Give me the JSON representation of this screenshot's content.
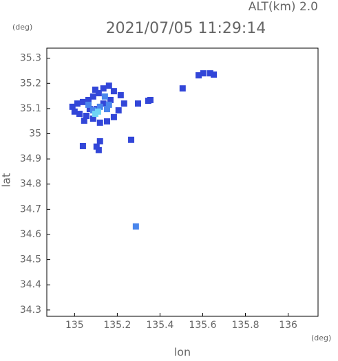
{
  "chart_data": {
    "type": "scatter",
    "header": "ALT(km) 2.0",
    "title": "2021/07/05 11:29:14",
    "y_unit": "(deg)",
    "x_unit": "(deg)",
    "ylabel": "lat",
    "xlabel": "lon",
    "xlim": [
      134.87,
      136.14
    ],
    "ylim": [
      34.275,
      35.34
    ],
    "xticks": [
      135.0,
      135.2,
      135.4,
      135.6,
      135.8,
      136.0
    ],
    "yticks": [
      34.3,
      34.4,
      34.5,
      34.6,
      34.7,
      34.8,
      34.9,
      35.0,
      35.1,
      35.2,
      35.3
    ],
    "series": [
      {
        "color": "#3246d8",
        "x": [
          134.99,
          135.013,
          135.039,
          135.065,
          135.087,
          135.113,
          135.135,
          135.161,
          135.184,
          135.216,
          135.232,
          135.206,
          135.184,
          135.152,
          135.119,
          135.087,
          135.055,
          135.023,
          135.0,
          135.103,
          135.135,
          135.168,
          135.071,
          135.097,
          135.045,
          135.039,
          135.103,
          135.119,
          135.113,
          135.581,
          135.603,
          135.635,
          135.652,
          135.506,
          135.345,
          135.355,
          135.297,
          135.265
        ],
        "y": [
          35.107,
          35.12,
          35.126,
          35.134,
          35.148,
          35.161,
          35.18,
          35.191,
          35.169,
          35.153,
          35.12,
          35.093,
          35.066,
          35.049,
          35.044,
          35.06,
          35.071,
          35.079,
          35.088,
          35.098,
          35.12,
          35.134,
          35.098,
          35.175,
          35.052,
          34.951,
          34.949,
          34.97,
          34.935,
          35.232,
          35.24,
          35.24,
          35.235,
          35.18,
          35.131,
          35.134,
          35.12,
          34.976
        ]
      },
      {
        "color": "#4a86ec",
        "x": [
          135.087,
          135.119,
          135.065,
          135.161,
          135.142,
          135.152,
          135.287
        ],
        "y": [
          35.093,
          35.107,
          35.115,
          35.115,
          35.148,
          35.098,
          34.632
        ]
      },
      {
        "color": "#6fd4f4",
        "x": [
          135.11,
          135.097
        ],
        "y": [
          35.088,
          35.079
        ]
      }
    ]
  }
}
